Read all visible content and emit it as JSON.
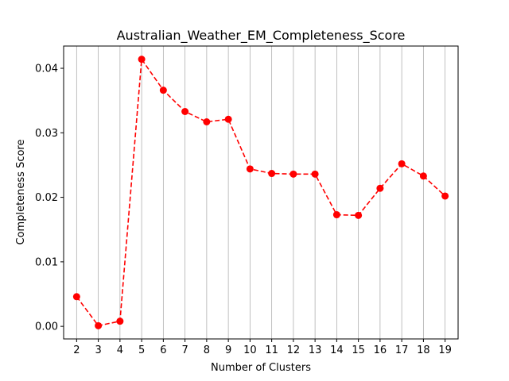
{
  "chart_data": {
    "type": "line",
    "title": "Australian_Weather_EM_Completeness_Score",
    "xlabel": "Number of Clusters",
    "ylabel": "Completeness Score",
    "x": [
      2,
      3,
      4,
      5,
      6,
      7,
      8,
      9,
      10,
      11,
      12,
      13,
      14,
      15,
      16,
      17,
      18,
      19
    ],
    "series": [
      {
        "values": [
          0.0046,
          0.0001,
          0.0008,
          0.0414,
          0.0366,
          0.0333,
          0.0317,
          0.0321,
          0.0244,
          0.0237,
          0.0236,
          0.0236,
          0.0173,
          0.0172,
          0.0214,
          0.0252,
          0.0233,
          0.0202
        ],
        "color": "#ff0000",
        "line_style": "dashed",
        "marker": "circle"
      }
    ],
    "x_ticks": [
      "2",
      "3",
      "4",
      "5",
      "6",
      "7",
      "8",
      "9",
      "10",
      "11",
      "12",
      "13",
      "14",
      "15",
      "16",
      "17",
      "18",
      "19"
    ],
    "y_ticks": [
      {
        "value": 0.0,
        "label": "0.00"
      },
      {
        "value": 0.01,
        "label": "0.01"
      },
      {
        "value": 0.02,
        "label": "0.02"
      },
      {
        "value": 0.03,
        "label": "0.03"
      },
      {
        "value": 0.04,
        "label": "0.04"
      }
    ],
    "xlim": [
      1.4,
      19.6
    ],
    "ylim": [
      -0.00195,
      0.04345
    ],
    "grid": "x-only"
  }
}
